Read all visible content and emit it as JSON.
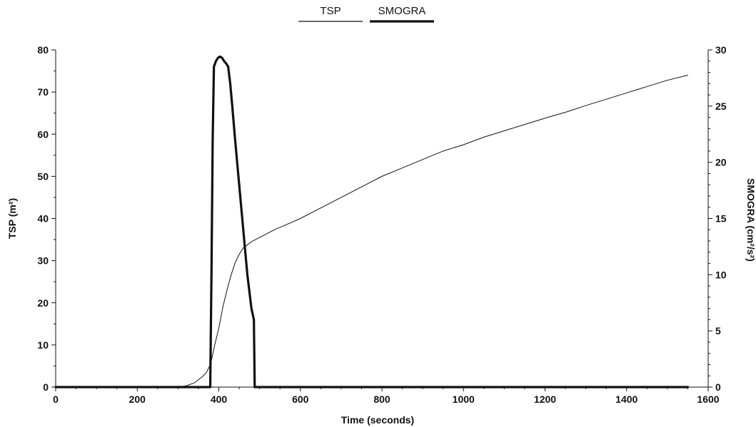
{
  "chart_data": {
    "type": "line",
    "title": "",
    "xlabel": "Time (seconds)",
    "ylabel_left": "TSP (m²)",
    "ylabel_right": "SMOGRA (cm²/s²)",
    "xlim": [
      0,
      1600
    ],
    "ylim_left": [
      0,
      80
    ],
    "ylim_right": [
      0,
      30
    ],
    "x_ticks": [
      0,
      200,
      400,
      600,
      800,
      1000,
      1200,
      1400,
      1600
    ],
    "y_left_ticks": [
      0,
      10,
      20,
      30,
      40,
      50,
      60,
      70,
      80
    ],
    "y_right_ticks": [
      0,
      5,
      10,
      15,
      20,
      25,
      30
    ],
    "grid": false,
    "legend": {
      "placement": "top-center",
      "entries": [
        "TSP",
        "SMOGRA"
      ]
    },
    "series": [
      {
        "name": "TSP",
        "axis": "left",
        "color": "#111111",
        "line_weight": "thin",
        "points": [
          [
            300,
            0
          ],
          [
            320,
            0.3
          ],
          [
            340,
            1.0
          ],
          [
            360,
            2.5
          ],
          [
            370,
            3.5
          ],
          [
            380,
            5.5
          ],
          [
            390,
            10
          ],
          [
            400,
            14
          ],
          [
            410,
            19
          ],
          [
            420,
            23
          ],
          [
            430,
            26.5
          ],
          [
            440,
            29.5
          ],
          [
            450,
            31.5
          ],
          [
            460,
            33
          ],
          [
            480,
            34.5
          ],
          [
            500,
            35.5
          ],
          [
            520,
            36.5
          ],
          [
            540,
            37.5
          ],
          [
            560,
            38.3
          ],
          [
            600,
            40
          ],
          [
            650,
            42.5
          ],
          [
            700,
            45
          ],
          [
            750,
            47.5
          ],
          [
            800,
            50
          ],
          [
            850,
            52
          ],
          [
            900,
            54
          ],
          [
            950,
            56
          ],
          [
            1000,
            57.5
          ],
          [
            1050,
            59.3
          ],
          [
            1100,
            60.8
          ],
          [
            1150,
            62.3
          ],
          [
            1200,
            63.8
          ],
          [
            1250,
            65.2
          ],
          [
            1300,
            66.8
          ],
          [
            1350,
            68.3
          ],
          [
            1400,
            69.8
          ],
          [
            1450,
            71.3
          ],
          [
            1500,
            72.8
          ],
          [
            1550,
            74
          ]
        ]
      },
      {
        "name": "SMOGRA",
        "axis": "right",
        "color": "#111111",
        "line_weight": "thick",
        "points": [
          [
            0,
            0
          ],
          [
            379,
            0
          ],
          [
            382,
            10
          ],
          [
            385,
            22
          ],
          [
            388,
            28.5
          ],
          [
            393,
            29.0
          ],
          [
            398,
            29.3
          ],
          [
            403,
            29.4
          ],
          [
            408,
            29.3
          ],
          [
            413,
            29.0
          ],
          [
            418,
            28.8
          ],
          [
            423,
            28.5
          ],
          [
            428,
            27
          ],
          [
            433,
            25
          ],
          [
            440,
            22
          ],
          [
            450,
            18
          ],
          [
            460,
            14
          ],
          [
            470,
            10
          ],
          [
            480,
            7
          ],
          [
            486,
            6
          ],
          [
            487,
            3
          ],
          [
            488,
            0
          ],
          [
            1550,
            0
          ]
        ]
      }
    ]
  }
}
